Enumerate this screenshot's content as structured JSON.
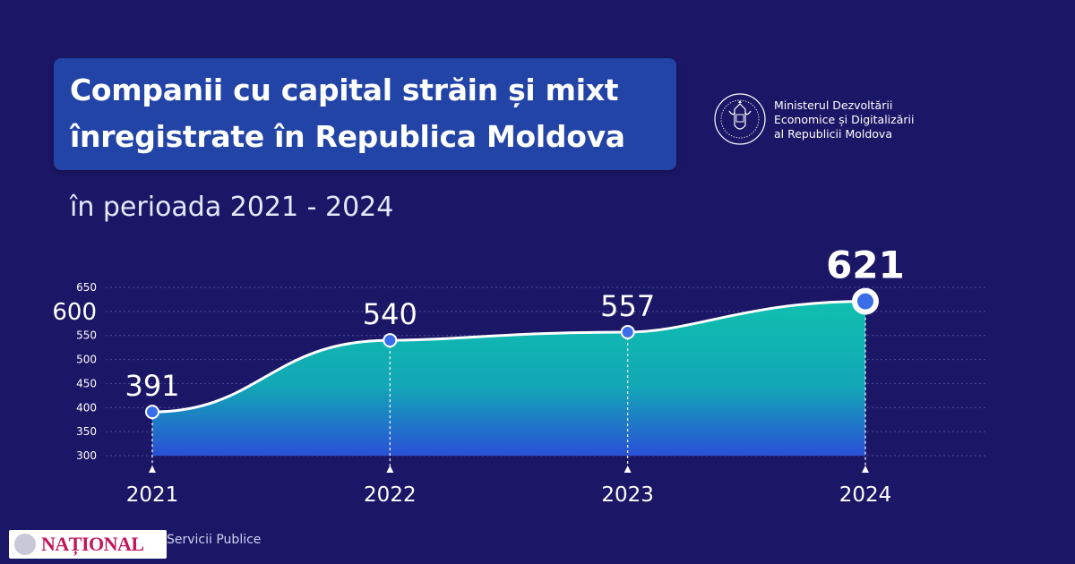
{
  "title": {
    "line1": "Companii cu capital străin și mixt",
    "line2": "înregistrate în Republica Moldova"
  },
  "subtitle": "în perioada 2021 - 2024",
  "ministry": {
    "line1": "Ministerul Dezvoltării",
    "line2": "Economice și Digitalizării",
    "line3": "al Republicii Moldova",
    "icon": "state-emblem-icon"
  },
  "footer": {
    "logo_text": "NAȚIONAL",
    "source": "Servicii Publice"
  },
  "colors": {
    "background": "#1b1666",
    "title_box": "#2244a6",
    "area_top": "#0fbfae",
    "area_bottom": "#2a4fd6",
    "point": "#3a6ee8",
    "line": "#ffffff"
  },
  "chart_data": {
    "type": "area",
    "categories": [
      "2021",
      "2022",
      "2023",
      "2024"
    ],
    "values": [
      391,
      540,
      557,
      621
    ],
    "value_labels": [
      "391",
      "540",
      "557",
      "621"
    ],
    "highlight_index": 3,
    "ylim": [
      300,
      650
    ],
    "y_ticks": [
      "300",
      "350",
      "400",
      "450",
      "500",
      "550",
      "600",
      "650"
    ],
    "emphasized_tick": "600",
    "grid": true,
    "legend": "none"
  }
}
